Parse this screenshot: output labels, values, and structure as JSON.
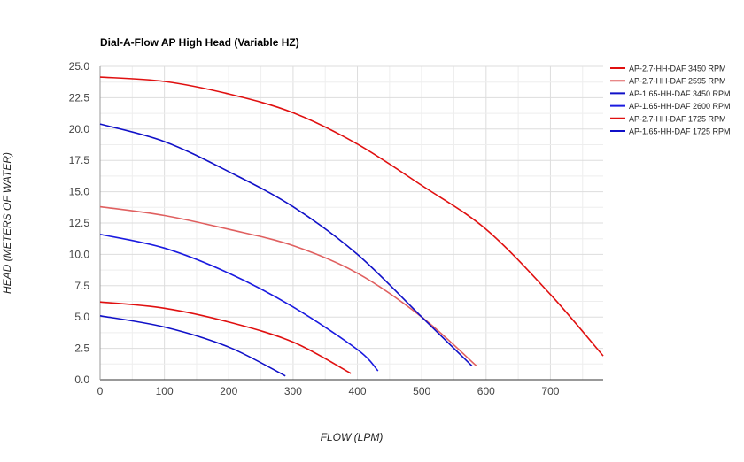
{
  "chart_data": {
    "type": "line",
    "title": "Dial-A-Flow AP High Head (Variable HZ)",
    "xlabel": "FLOW (LPM)",
    "ylabel": "HEAD (METERS OF WATER)",
    "xlim": [
      0,
      782
    ],
    "ylim": [
      0,
      25
    ],
    "xticks": [
      "0",
      "100",
      "200",
      "300",
      "400",
      "500",
      "600",
      "700"
    ],
    "yticks": [
      "0.0",
      "2.5",
      "5.0",
      "7.5",
      "10.0",
      "12.5",
      "15.0",
      "17.5",
      "20.0",
      "22.5",
      "25.0"
    ],
    "grid": true,
    "legend": "right",
    "series": [
      {
        "name": "AP-2.7-HH-DAF 3450 RPM",
        "color": "#e01010",
        "points": [
          [
            0,
            24.15
          ],
          [
            100,
            23.8
          ],
          [
            200,
            22.8
          ],
          [
            300,
            21.3
          ],
          [
            400,
            18.8
          ],
          [
            500,
            15.5
          ],
          [
            600,
            12.0
          ],
          [
            700,
            6.8
          ],
          [
            782,
            1.9
          ]
        ]
      },
      {
        "name": "AP-2.7-HH-DAF 2595 RPM",
        "color": "#e06060",
        "points": [
          [
            0,
            13.8
          ],
          [
            100,
            13.1
          ],
          [
            200,
            12.0
          ],
          [
            300,
            10.7
          ],
          [
            400,
            8.5
          ],
          [
            500,
            5.0
          ],
          [
            585,
            1.1
          ]
        ]
      },
      {
        "name": "AP-1.65-HH-DAF 3450 RPM",
        "color": "#1010c8",
        "points": [
          [
            0,
            20.4
          ],
          [
            100,
            19.0
          ],
          [
            200,
            16.6
          ],
          [
            300,
            13.8
          ],
          [
            400,
            10.0
          ],
          [
            500,
            5.0
          ],
          [
            578,
            1.1
          ]
        ]
      },
      {
        "name": "AP-1.65-HH-DAF 2600 RPM",
        "color": "#1a1ae0",
        "points": [
          [
            0,
            11.6
          ],
          [
            100,
            10.5
          ],
          [
            200,
            8.5
          ],
          [
            300,
            5.8
          ],
          [
            400,
            2.4
          ],
          [
            432,
            0.7
          ]
        ]
      },
      {
        "name": "AP-2.7-HH-DAF 1725 RPM",
        "color": "#e01010",
        "points": [
          [
            0,
            6.2
          ],
          [
            100,
            5.7
          ],
          [
            200,
            4.6
          ],
          [
            300,
            3.0
          ],
          [
            390,
            0.5
          ]
        ]
      },
      {
        "name": "AP-1.65-HH-DAF 1725 RPM",
        "color": "#1010c8",
        "points": [
          [
            0,
            5.1
          ],
          [
            100,
            4.2
          ],
          [
            200,
            2.6
          ],
          [
            288,
            0.3
          ]
        ]
      }
    ]
  }
}
